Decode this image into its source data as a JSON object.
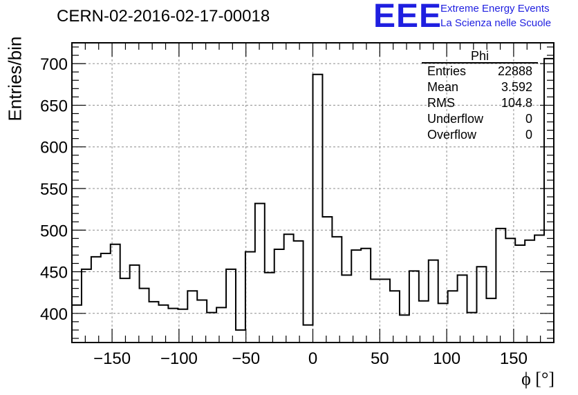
{
  "header": {
    "title": "CERN-02-2016-02-17-00018",
    "logo_text": "EEE",
    "logo_line1": "Extreme Energy Events",
    "logo_line2": "La Scienza nelle Scuole"
  },
  "stats_box": {
    "name": "Phi",
    "rows": [
      {
        "label": "Entries",
        "value": "22888"
      },
      {
        "label": "Mean",
        "value": "3.592"
      },
      {
        "label": "RMS",
        "value": "104.8"
      },
      {
        "label": "Underflow",
        "value": "0"
      },
      {
        "label": "Overflow",
        "value": "0"
      }
    ]
  },
  "chart_data": {
    "type": "bar",
    "style": "step-histogram",
    "title": "CERN-02-2016-02-17-00018",
    "xlabel": "ϕ [°]",
    "ylabel": "Entries/bin",
    "xlim": [
      -180,
      180
    ],
    "ylim": [
      365,
      725
    ],
    "bin_width": 7.2,
    "grid": true,
    "xticks": [
      -150,
      -100,
      -50,
      0,
      50,
      100,
      150
    ],
    "xtick_labels": [
      "−150",
      "−100",
      "−50",
      "0",
      "50",
      "100",
      "150"
    ],
    "yticks": [
      400,
      450,
      500,
      550,
      600,
      650,
      700
    ],
    "ytick_labels": [
      "400",
      "450",
      "500",
      "550",
      "600",
      "650",
      "700"
    ],
    "bin_edges_start": -180,
    "values": [
      410,
      453,
      468,
      472,
      483,
      442,
      458,
      430,
      414,
      410,
      406,
      405,
      427,
      416,
      401,
      407,
      453,
      380,
      474,
      532,
      449,
      477,
      495,
      487,
      386,
      687,
      516,
      492,
      446,
      476,
      478,
      441,
      441,
      427,
      398,
      451,
      415,
      464,
      412,
      427,
      446,
      401,
      456,
      418,
      502,
      490,
      482,
      488,
      494,
      706
    ],
    "colors": {
      "line": "#000000",
      "grid": "#8c8c8c",
      "logo": "#1f1fe0"
    }
  }
}
